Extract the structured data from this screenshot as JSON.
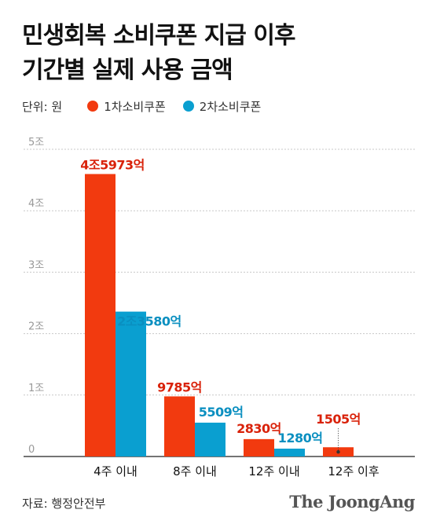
{
  "title_lines": [
    "민생회복 소비쿠폰 지급 이후",
    "기간별 실제 사용 금액"
  ],
  "legend": {
    "unit": "단위: 원",
    "items": [
      {
        "label": "1차소비쿠폰",
        "color": "#f23a0f"
      },
      {
        "label": "2차소비쿠폰",
        "color": "#0a9fd0"
      }
    ]
  },
  "source": "자료: 행정안전부",
  "logo": "The JoongAng",
  "chart_data": {
    "type": "bar",
    "categories": [
      "4주 이내",
      "8주 이내",
      "12주 이내",
      "12주 이후"
    ],
    "series": [
      {
        "name": "1차소비쿠폰",
        "color": "#f23a0f",
        "values": [
          4.5973,
          0.9785,
          0.283,
          0.1505
        ],
        "labels": [
          "4조5973억",
          "9785억",
          "2830억",
          "1505억"
        ]
      },
      {
        "name": "2차소비쿠폰",
        "color": "#0a9fd0",
        "values": [
          2.358,
          0.5509,
          0.128,
          null
        ],
        "labels": [
          "2조3580억",
          "5509억",
          "1280억",
          null
        ]
      }
    ],
    "yticks": [
      {
        "value": 0,
        "label": "0"
      },
      {
        "value": 1,
        "label": "1조"
      },
      {
        "value": 2,
        "label": "2조"
      },
      {
        "value": 3,
        "label": "3조"
      },
      {
        "value": 4,
        "label": "4조"
      },
      {
        "value": 5,
        "label": "5조"
      }
    ],
    "ylim": [
      0,
      5
    ],
    "grid": true
  }
}
